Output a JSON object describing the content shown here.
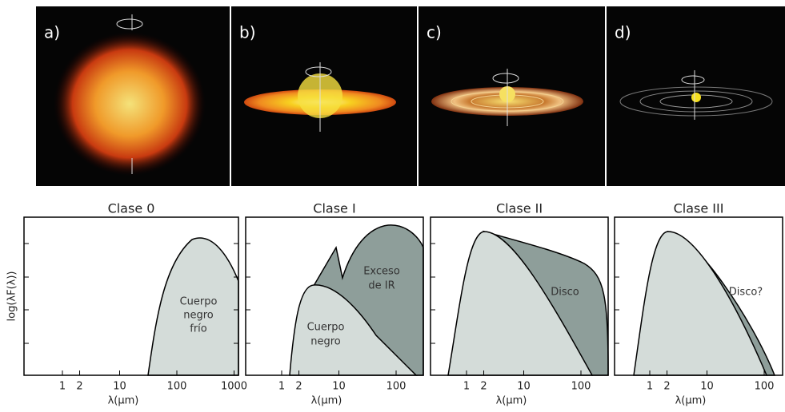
{
  "panels": [
    {
      "label": "a)"
    },
    {
      "label": "b)"
    },
    {
      "label": "c)"
    },
    {
      "label": "d)"
    }
  ],
  "plots": [
    {
      "title": "Clase 0",
      "xticks": [
        "1",
        "2",
        "10",
        "100",
        "1000"
      ],
      "annotation": [
        "Cuerpo",
        "negro",
        "frío"
      ]
    },
    {
      "title": "Clase I",
      "xticks": [
        "1",
        "2",
        "10",
        "100"
      ],
      "annotation": [
        "Exceso",
        "de IR"
      ],
      "annotation2": [
        "Cuerpo",
        "negro"
      ]
    },
    {
      "title": "Clase II",
      "xticks": [
        "1",
        "2",
        "10",
        "100"
      ],
      "annotation": [
        "Disco"
      ]
    },
    {
      "title": "Clase III",
      "xticks": [
        "1",
        "2",
        "10",
        "100"
      ],
      "annotation": [
        "Disco?"
      ]
    }
  ],
  "ylabel": "log(λF(λ))",
  "xlabel": "λ(μm)"
}
